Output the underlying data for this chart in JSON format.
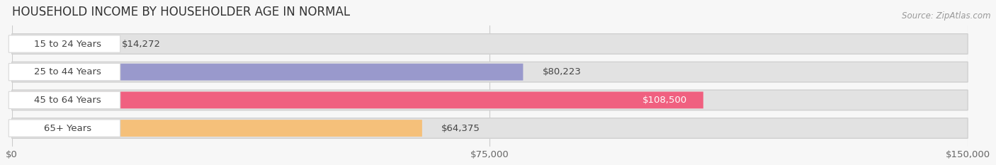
{
  "title": "HOUSEHOLD INCOME BY HOUSEHOLDER AGE IN NORMAL",
  "source": "Source: ZipAtlas.com",
  "categories": [
    "15 to 24 Years",
    "25 to 44 Years",
    "45 to 64 Years",
    "65+ Years"
  ],
  "values": [
    14272,
    80223,
    108500,
    64375
  ],
  "bar_colors": [
    "#7dcfcf",
    "#9999cc",
    "#f06080",
    "#f5c07a"
  ],
  "value_label_inside": [
    false,
    false,
    true,
    false
  ],
  "value_label_colors_inside": [
    "#333333",
    "#333333",
    "#ffffff",
    "#333333"
  ],
  "xlim": [
    0,
    150000
  ],
  "xticks": [
    0,
    75000,
    150000
  ],
  "xtick_labels": [
    "$0",
    "$75,000",
    "$150,000"
  ],
  "background_color": "#f7f7f7",
  "bar_bg_color": "#e2e2e2",
  "pill_color": "#ffffff",
  "title_fontsize": 12,
  "tick_fontsize": 9.5,
  "label_fontsize": 9.5,
  "source_fontsize": 8.5
}
